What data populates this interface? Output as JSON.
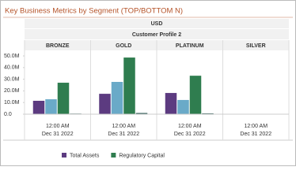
{
  "chart_data": {
    "type": "bar",
    "title": "Key Business Metrics by Segment (TOP/BOTTOM N)",
    "currency": "USD",
    "group": "Customer Profile 2",
    "categories": [
      "BRONZE",
      "GOLD",
      "PLATINUM",
      "SILVER"
    ],
    "x_time": "12:00 AM",
    "x_date": "Dec 31 2022",
    "series": [
      {
        "name": "Total Assets",
        "color": "#5c3b80",
        "values": [
          11500000,
          17500000,
          18200000,
          null
        ]
      },
      {
        "color": "#6aaac8",
        "values": [
          12800000,
          27700000,
          12200000,
          null
        ]
      },
      {
        "name": "Regulatory Capital",
        "color": "#2f7d4f",
        "values": [
          27000000,
          48600000,
          33000000,
          null
        ]
      },
      {
        "color": "#1f4f4a",
        "values": [
          500000,
          1000000,
          700000,
          null
        ]
      }
    ],
    "ylim": [
      0,
      50000000
    ],
    "yticks": [
      {
        "value": 0,
        "label": "0.0"
      },
      {
        "value": 10000000,
        "label": "10.0M"
      },
      {
        "value": 20000000,
        "label": "20.0M"
      },
      {
        "value": 30000000,
        "label": "30.0M"
      },
      {
        "value": 40000000,
        "label": "40.0M"
      },
      {
        "value": 50000000,
        "label": "50.0M"
      }
    ]
  }
}
